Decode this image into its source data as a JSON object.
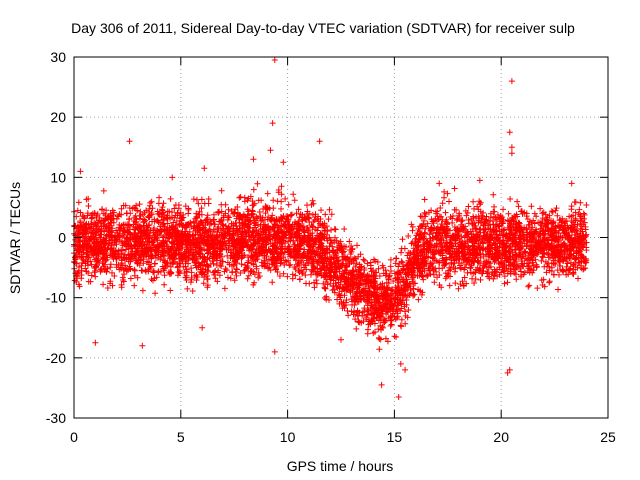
{
  "chart_data": {
    "type": "scatter",
    "title": "Day 306 of 2011, Sidereal Day-to-day VTEC variation (SDTVAR) for receiver sulp",
    "xlabel": "GPS time / hours",
    "ylabel": "SDTVAR / TECUs",
    "xlim": [
      0,
      25
    ],
    "ylim": [
      -30,
      30
    ],
    "xticks": [
      0,
      5,
      10,
      15,
      20,
      25
    ],
    "xtick_labels": [
      "0",
      "5",
      "10",
      "15",
      "20",
      "25"
    ],
    "yticks": [
      -30,
      -20,
      -10,
      0,
      10,
      20,
      30
    ],
    "ytick_labels": [
      "-30",
      "-20",
      "-10",
      "0",
      "10",
      "20",
      "30"
    ],
    "grid": true,
    "marker": "+",
    "color": "#ff0000",
    "x_data_range": [
      0,
      24
    ],
    "envelope": {
      "x": [
        0,
        1,
        2,
        3,
        4,
        5,
        6,
        7,
        8,
        9,
        10,
        11,
        11.5,
        12,
        13,
        14,
        14.5,
        15,
        15.5,
        16,
        17,
        18,
        19,
        20,
        21,
        22,
        23,
        24
      ],
      "center": [
        -1,
        -1,
        -1,
        -1,
        -1,
        -1,
        -1,
        -1,
        0,
        0,
        0,
        -1,
        -2,
        -4,
        -7,
        -10,
        -11,
        -10,
        -8,
        -3,
        -1,
        -1,
        -1,
        -1,
        -1,
        -1,
        -1,
        -1
      ],
      "half_width": [
        6,
        6,
        6,
        6,
        6,
        6,
        6,
        6,
        6,
        6,
        6,
        6,
        6,
        6,
        6,
        6,
        6,
        6,
        6,
        6,
        6,
        6,
        6,
        6,
        6,
        6,
        6,
        6
      ]
    },
    "outliers": [
      {
        "x": 9.4,
        "y": 29.5
      },
      {
        "x": 20.5,
        "y": 26
      },
      {
        "x": 9.3,
        "y": 19
      },
      {
        "x": 20.4,
        "y": 17.5
      },
      {
        "x": 2.6,
        "y": 16
      },
      {
        "x": 11.5,
        "y": 16
      },
      {
        "x": 9.2,
        "y": 14.5
      },
      {
        "x": 20.5,
        "y": 15
      },
      {
        "x": 20.5,
        "y": 14
      },
      {
        "x": 14.4,
        "y": -24.5
      },
      {
        "x": 15.2,
        "y": -26.5
      },
      {
        "x": 20.3,
        "y": -22.5
      },
      {
        "x": 20.4,
        "y": -22
      },
      {
        "x": 9.4,
        "y": -19
      },
      {
        "x": 1.0,
        "y": -17.5
      },
      {
        "x": 3.2,
        "y": -18
      },
      {
        "x": 6.0,
        "y": -15
      },
      {
        "x": 12.5,
        "y": -17
      },
      {
        "x": 15.5,
        "y": -22
      },
      {
        "x": 15.3,
        "y": -21
      },
      {
        "x": 0.3,
        "y": 11
      },
      {
        "x": 6.1,
        "y": 11.5
      },
      {
        "x": 8.4,
        "y": 13
      },
      {
        "x": 9.8,
        "y": 12.5
      },
      {
        "x": 4.6,
        "y": 10
      },
      {
        "x": 17.1,
        "y": 9
      },
      {
        "x": 19.0,
        "y": 9.5
      },
      {
        "x": 23.3,
        "y": 9
      }
    ]
  }
}
